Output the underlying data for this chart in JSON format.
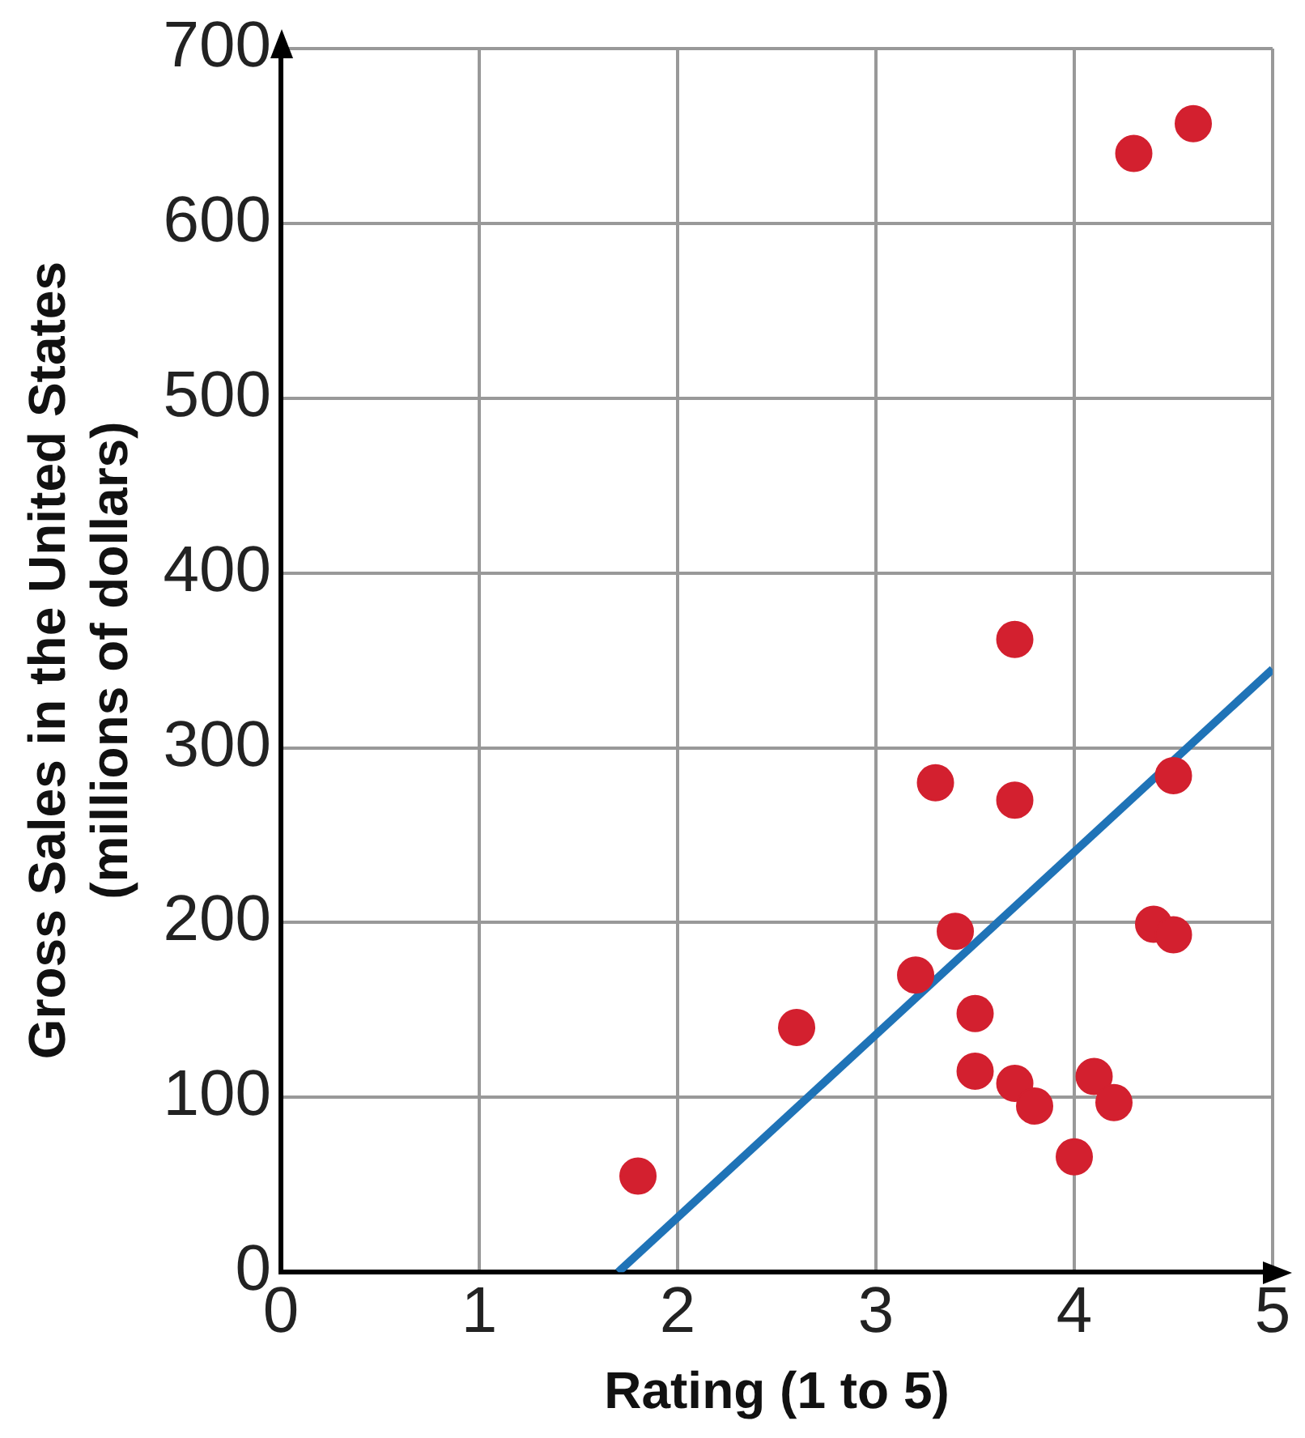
{
  "chart_data": {
    "type": "scatter",
    "xlabel": "Rating (1 to 5)",
    "ylabel": "Gross Sales in the United States (millions of dollars)",
    "xlim": [
      0,
      5
    ],
    "xticks": [
      0,
      1,
      2,
      3,
      4,
      5
    ],
    "ylim": [
      0,
      700
    ],
    "yticks": [
      0,
      100,
      200,
      300,
      400,
      500,
      600,
      700
    ],
    "grid": true,
    "legend": false,
    "marker": "circle",
    "series": [
      {
        "color": "#d3202f",
        "x": [
          1.8,
          2.6,
          3.2,
          3.3,
          3.4,
          3.5,
          3.5,
          3.7,
          3.7,
          3.7,
          3.8,
          4.0,
          4.1,
          4.2,
          4.4,
          4.5,
          4.5,
          4.3,
          4.6
        ],
        "values": [
          55,
          140,
          170,
          280,
          195,
          148,
          115,
          362,
          270,
          108,
          95,
          66,
          112,
          97,
          199,
          193,
          284,
          640,
          657
        ]
      },
      {
        "type": "line",
        "color": "#1f73b7",
        "line_style": "solid",
        "marker": "none",
        "x": [
          1.7,
          5
        ],
        "values": [
          0,
          345
        ]
      }
    ]
  }
}
